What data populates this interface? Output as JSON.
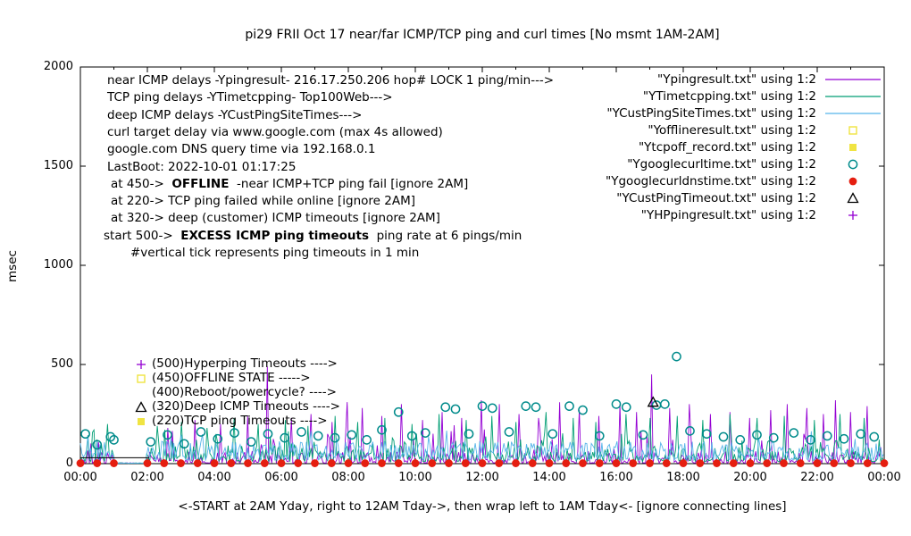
{
  "chart_data": {
    "type": "line",
    "title": "pi29 FRII Oct 17  near/far ICMP/TCP ping and curl times [No msmt 1AM-2AM]",
    "xlabel": "<-START at 2AM Yday, right to 12AM Tday->, then wrap left to 1AM Tday<- [ignore connecting lines]",
    "ylabel": "msec",
    "ylim": [
      0,
      2000
    ],
    "yticks": [
      0,
      500,
      1000,
      1500,
      2000
    ],
    "xlim_hours": [
      0,
      24
    ],
    "xtick_step_hours": 2,
    "xtick_labels": [
      "00:00",
      "02:00",
      "04:00",
      "06:00",
      "08:00",
      "10:00",
      "12:00",
      "14:00",
      "16:00",
      "18:00",
      "20:00",
      "22:00",
      "00:00"
    ],
    "grid": false,
    "legend_position": "top-right-inside",
    "series": [
      {
        "name": "Ypingresult",
        "legend_label": "\"Ypingresult.txt\" using 1:2",
        "style": "line",
        "color": "#9400d3",
        "noise": {
          "seed": 101,
          "step_hours": 0.045,
          "base": 3,
          "amp": 60,
          "pow": 2.8,
          "spike_prob": 0.1,
          "spike_extra": 150,
          "quiet_window": [
            1.03,
            1.97
          ]
        },
        "spikes": [
          [
            2.6,
            180
          ],
          [
            3.4,
            220
          ],
          [
            4.2,
            200
          ],
          [
            5.0,
            240
          ],
          [
            5.6,
            490
          ],
          [
            6.3,
            230
          ],
          [
            6.9,
            250
          ],
          [
            7.5,
            210
          ],
          [
            7.95,
            310
          ],
          [
            8.4,
            280
          ],
          [
            9.0,
            240
          ],
          [
            9.6,
            300
          ],
          [
            10.2,
            220
          ],
          [
            10.8,
            260
          ],
          [
            11.4,
            230
          ],
          [
            11.95,
            320
          ],
          [
            12.5,
            300
          ],
          [
            13.1,
            250
          ],
          [
            13.7,
            230
          ],
          [
            14.3,
            310
          ],
          [
            14.9,
            270
          ],
          [
            15.5,
            240
          ],
          [
            16.1,
            300
          ],
          [
            16.6,
            260
          ],
          [
            17.07,
            450
          ],
          [
            17.6,
            280
          ],
          [
            18.2,
            300
          ],
          [
            18.8,
            250
          ],
          [
            19.4,
            260
          ],
          [
            20.0,
            230
          ],
          [
            20.6,
            270
          ],
          [
            21.1,
            300
          ],
          [
            21.7,
            280
          ],
          [
            22.2,
            250
          ],
          [
            22.55,
            320
          ],
          [
            23.0,
            260
          ],
          [
            23.5,
            290
          ]
        ]
      },
      {
        "name": "YTimetcpping",
        "legend_label": "\"YTimetcpping.txt\" using 1:2",
        "style": "line",
        "color": "#009e73",
        "noise": {
          "seed": 202,
          "step_hours": 0.045,
          "base": 10,
          "amp": 80,
          "pow": 2.0,
          "spike_prob": 0.15,
          "spike_extra": 120,
          "quiet_window": [
            1.03,
            1.97
          ]
        },
        "spikes": [
          [
            0.4,
            170
          ],
          [
            0.8,
            200
          ],
          [
            2.3,
            190
          ],
          [
            3.0,
            210
          ],
          [
            3.8,
            180
          ],
          [
            4.6,
            230
          ],
          [
            5.3,
            200
          ],
          [
            6.1,
            220
          ],
          [
            6.8,
            190
          ],
          [
            7.6,
            240
          ],
          [
            8.3,
            210
          ],
          [
            9.1,
            230
          ],
          [
            9.9,
            200
          ],
          [
            10.7,
            250
          ],
          [
            11.5,
            220
          ],
          [
            12.3,
            240
          ],
          [
            13.0,
            210
          ],
          [
            13.9,
            260
          ],
          [
            14.7,
            230
          ],
          [
            15.4,
            210
          ],
          [
            16.3,
            250
          ],
          [
            17.0,
            230
          ],
          [
            17.8,
            240
          ],
          [
            18.6,
            220
          ],
          [
            19.4,
            250
          ],
          [
            20.2,
            230
          ],
          [
            21.0,
            240
          ],
          [
            21.9,
            220
          ],
          [
            22.7,
            250
          ],
          [
            23.4,
            230
          ]
        ]
      },
      {
        "name": "YCustPingSiteTimes",
        "legend_label": "\"YCustPingSiteTimes.txt\" using 1:2",
        "style": "line",
        "color": "#56b4e9",
        "noise": {
          "seed": 303,
          "step_hours": 0.045,
          "base": 18,
          "amp": 95,
          "pow": 1.6,
          "spike_prob": 0.08,
          "spike_extra": 70,
          "quiet_window": [
            1.03,
            1.97
          ]
        },
        "spikes": []
      },
      {
        "name": "Yofflineresult",
        "legend_label": "\"Yofflineresult.txt\" using 1:2",
        "style": "points",
        "marker": "square-open",
        "color": "#f0e442",
        "points": []
      },
      {
        "name": "Ytcpoff_record",
        "legend_label": "\"Ytcpoff_record.txt\" using 1:2",
        "style": "points",
        "marker": "square-filled",
        "color": "#f0e442",
        "points": []
      },
      {
        "name": "Ygooglecurltime",
        "legend_label": "\"Ygooglecurltime.txt\" using 1:2",
        "style": "points",
        "marker": "circle-open",
        "color": "#008b8b",
        "points": [
          [
            0.15,
            150
          ],
          [
            0.5,
            95
          ],
          [
            0.9,
            135
          ],
          [
            1.0,
            120
          ],
          [
            2.1,
            110
          ],
          [
            2.6,
            145
          ],
          [
            3.1,
            100
          ],
          [
            3.6,
            160
          ],
          [
            4.1,
            125
          ],
          [
            4.6,
            155
          ],
          [
            5.1,
            110
          ],
          [
            5.6,
            150
          ],
          [
            6.1,
            130
          ],
          [
            6.6,
            160
          ],
          [
            7.1,
            140
          ],
          [
            7.6,
            130
          ],
          [
            8.1,
            145
          ],
          [
            8.55,
            120
          ],
          [
            9.0,
            170
          ],
          [
            9.5,
            260
          ],
          [
            9.9,
            140
          ],
          [
            10.3,
            155
          ],
          [
            10.9,
            285
          ],
          [
            11.2,
            275
          ],
          [
            11.6,
            150
          ],
          [
            12.0,
            290
          ],
          [
            12.3,
            280
          ],
          [
            12.8,
            160
          ],
          [
            13.3,
            290
          ],
          [
            13.6,
            285
          ],
          [
            14.1,
            150
          ],
          [
            14.6,
            290
          ],
          [
            15.0,
            270
          ],
          [
            15.5,
            140
          ],
          [
            16.0,
            300
          ],
          [
            16.3,
            285
          ],
          [
            16.8,
            145
          ],
          [
            17.2,
            295
          ],
          [
            17.45,
            300
          ],
          [
            17.8,
            540
          ],
          [
            18.2,
            165
          ],
          [
            18.7,
            150
          ],
          [
            19.2,
            135
          ],
          [
            19.7,
            120
          ],
          [
            20.2,
            145
          ],
          [
            20.7,
            130
          ],
          [
            21.3,
            155
          ],
          [
            21.8,
            120
          ],
          [
            22.3,
            140
          ],
          [
            22.8,
            125
          ],
          [
            23.3,
            150
          ],
          [
            23.7,
            135
          ]
        ]
      },
      {
        "name": "Ygooglecurldnstime",
        "legend_label": "\"Ygooglecurldnstime.txt\" using 1:2",
        "style": "points",
        "marker": "circle-filled",
        "color": "#e51e10",
        "periodic": {
          "start": 0,
          "end": 24,
          "step_hours": 0.5,
          "value_msec": 2,
          "skip_window": [
            1.01,
            1.99
          ]
        },
        "points": []
      },
      {
        "name": "YCustPingTimeout",
        "legend_label": "\"YCustPingTimeout.txt\" using 1:2",
        "style": "points",
        "marker": "triangle-open",
        "color": "#000000",
        "points": [
          [
            17.1,
            310
          ]
        ],
        "segments": [
          [
            [
              0.0,
              30
            ],
            [
              2.05,
              30
            ]
          ]
        ]
      },
      {
        "name": "YHPpingresult",
        "legend_label": "\"YHPpingresult.txt\" using 1:2",
        "style": "points",
        "marker": "plus",
        "color": "#9400d3",
        "points": []
      }
    ]
  },
  "annotations": {
    "lines": [
      {
        "indent": 4,
        "segments": [
          {
            "text": "near ICMP delays -Ypingresult- 216.17.250.206 hop# LOCK 1 ping/min--->"
          }
        ]
      },
      {
        "indent": 4,
        "segments": [
          {
            "text": "TCP ping delays -YTimetcpping- Top100Web--->"
          }
        ]
      },
      {
        "indent": 4,
        "segments": [
          {
            "text": "deep ICMP delays -YCustPingSiteTimes--->"
          }
        ]
      },
      {
        "indent": 4,
        "segments": [
          {
            "text": "curl target delay via www.google.com (max 4s allowed)"
          }
        ]
      },
      {
        "indent": 4,
        "segments": [
          {
            "text": "google.com DNS query time via 192.168.0.1"
          }
        ]
      },
      {
        "indent": 4,
        "segments": [
          {
            "text": "LastBoot: 2022-10-01 01:17:25"
          }
        ]
      },
      {
        "indent": 8,
        "segments": [
          {
            "text": "at 450->  "
          },
          {
            "text": "OFFLINE",
            "bold": true
          },
          {
            "text": "  -near ICMP+TCP ping fail [ignore 2AM]"
          }
        ]
      },
      {
        "indent": 8,
        "segments": [
          {
            "text": "at 220-> TCP ping failed while online [ignore 2AM]"
          }
        ]
      },
      {
        "indent": 8,
        "segments": [
          {
            "text": "at 320-> deep (customer) ICMP timeouts [ignore 2AM]"
          }
        ]
      },
      {
        "indent": 0,
        "segments": [
          {
            "text": "start 500->  "
          },
          {
            "text": "EXCESS ICMP ping timeouts",
            "bold": true
          },
          {
            "text": "  ping rate at 6 pings/min"
          }
        ]
      },
      {
        "indent": 30,
        "segments": [
          {
            "text": "#vertical tick represents ping timeouts in 1 min"
          }
        ]
      }
    ]
  },
  "inplot_labels": [
    {
      "msec": 500,
      "marker": "plus",
      "color": "#9400d3",
      "text": "(500)Hyperping Timeouts ---->"
    },
    {
      "msec": 450,
      "marker": "square-open",
      "color": "#f0e442",
      "text": "(450)OFFLINE STATE ----->"
    },
    {
      "msec": 400,
      "marker": "none",
      "color": "#000000",
      "text": "(400)Reboot/powercycle? ---->"
    },
    {
      "msec": 320,
      "marker": "triangle-open",
      "color": "#000000",
      "text": "(320)Deep ICMP Timeouts ---->"
    },
    {
      "msec": 220,
      "marker": "square-filled",
      "color": "#f0e442",
      "text": "(220)TCP ping Timeouts ---->"
    }
  ]
}
